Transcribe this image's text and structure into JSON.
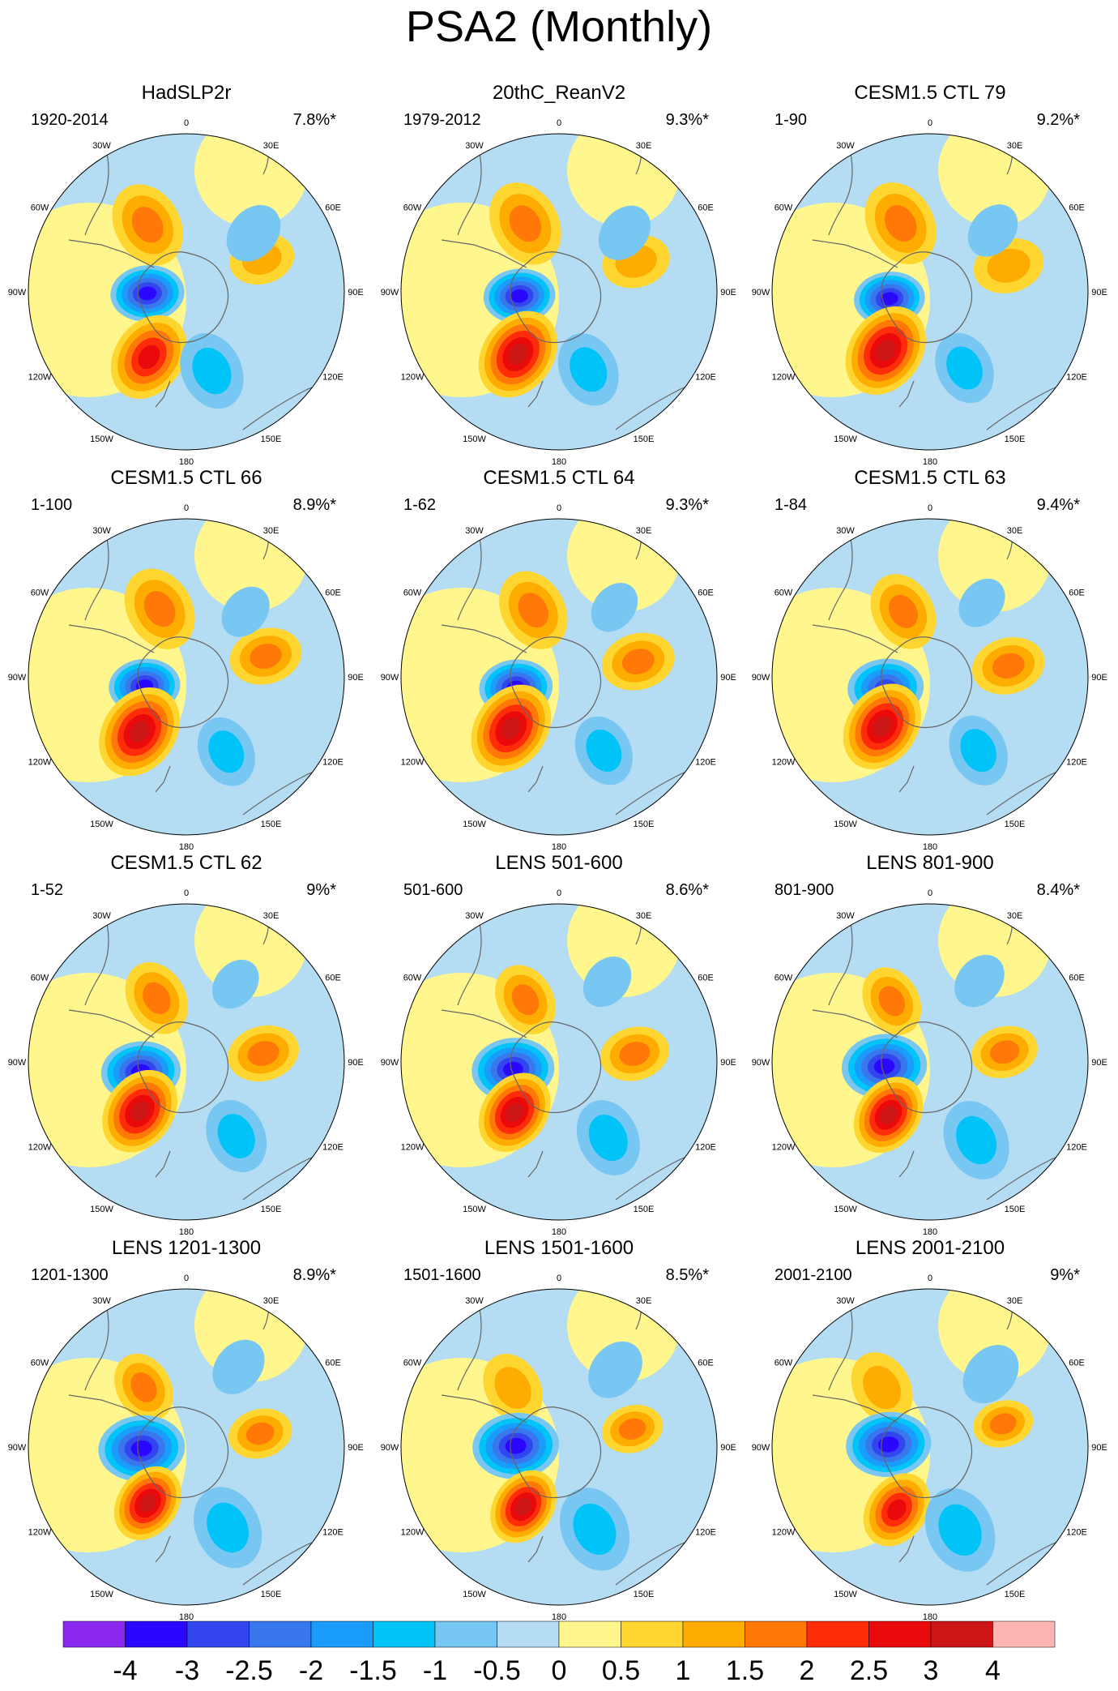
{
  "title": "PSA2 (Monthly)",
  "chart_data": {
    "type": "contour_map",
    "projection": "south_polar_stereographic",
    "longitude_labels": [
      "0",
      "30E",
      "60E",
      "90E",
      "120E",
      "150E",
      "180",
      "150W",
      "120W",
      "90W",
      "60W",
      "30W"
    ],
    "panels": [
      {
        "title": "HadSLP2r",
        "period": "1920-2014",
        "variance": "7.8%*"
      },
      {
        "title": "20thC_ReanV2",
        "period": "1979-2012",
        "variance": "9.3%*"
      },
      {
        "title": "CESM1.5 CTL 79",
        "period": "1-90",
        "variance": "9.2%*"
      },
      {
        "title": "CESM1.5 CTL 66",
        "period": "1-100",
        "variance": "8.9%*"
      },
      {
        "title": "CESM1.5 CTL 64",
        "period": "1-62",
        "variance": "9.3%*"
      },
      {
        "title": "CESM1.5 CTL 63",
        "period": "1-84",
        "variance": "9.4%*"
      },
      {
        "title": "CESM1.5 CTL 62",
        "period": "1-52",
        "variance": "9%*"
      },
      {
        "title": "LENS 501-600",
        "period": "501-600",
        "variance": "8.6%*"
      },
      {
        "title": "LENS 801-900",
        "period": "801-900",
        "variance": "8.4%*"
      },
      {
        "title": "LENS 1201-1300",
        "period": "1201-1300",
        "variance": "8.9%*"
      },
      {
        "title": "LENS 1501-1600",
        "period": "1501-1600",
        "variance": "8.5%*"
      },
      {
        "title": "LENS 2001-2100",
        "period": "2001-2100",
        "variance": "9%*"
      }
    ],
    "colorbar": {
      "labels": [
        "-4",
        "-3",
        "-2.5",
        "-2",
        "-1.5",
        "-1",
        "-0.5",
        "0",
        "0.5",
        "1",
        "1.5",
        "2",
        "2.5",
        "3",
        "4"
      ],
      "colors": [
        "#8a28f0",
        "#2a08ff",
        "#3245ee",
        "#3878ec",
        "#1a9cfb",
        "#00c4f8",
        "#78c6f2",
        "#b4dcf2",
        "#fff68e",
        "#ffd630",
        "#ffac00",
        "#ff7808",
        "#ff2c0a",
        "#ea0a0c",
        "#cc1616",
        "#ffb4b4"
      ]
    }
  }
}
